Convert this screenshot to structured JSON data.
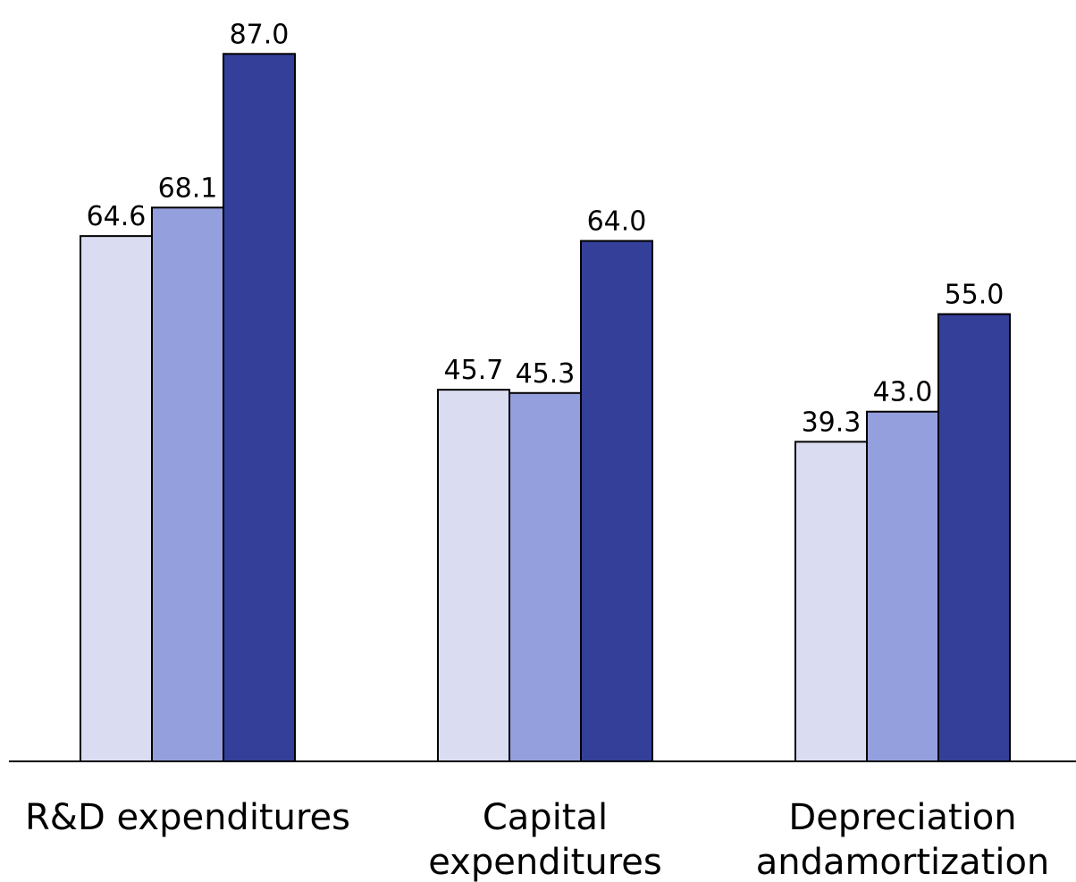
{
  "chart_data": {
    "type": "bar",
    "categories": [
      [
        "R&D expenditures"
      ],
      [
        "Capital",
        "expenditures"
      ],
      [
        "Depreciation",
        "andamortization"
      ]
    ],
    "series": [
      {
        "values": [
          64.6,
          45.7,
          39.3
        ],
        "color": "#DADDF2"
      },
      {
        "values": [
          68.1,
          45.3,
          43.0
        ],
        "color": "#949FDD"
      },
      {
        "values": [
          87.0,
          64.0,
          55.0
        ],
        "color": "#343F99"
      }
    ],
    "ylim": [
      0,
      87
    ],
    "value_labels": true,
    "grid": false,
    "legend": "none"
  }
}
